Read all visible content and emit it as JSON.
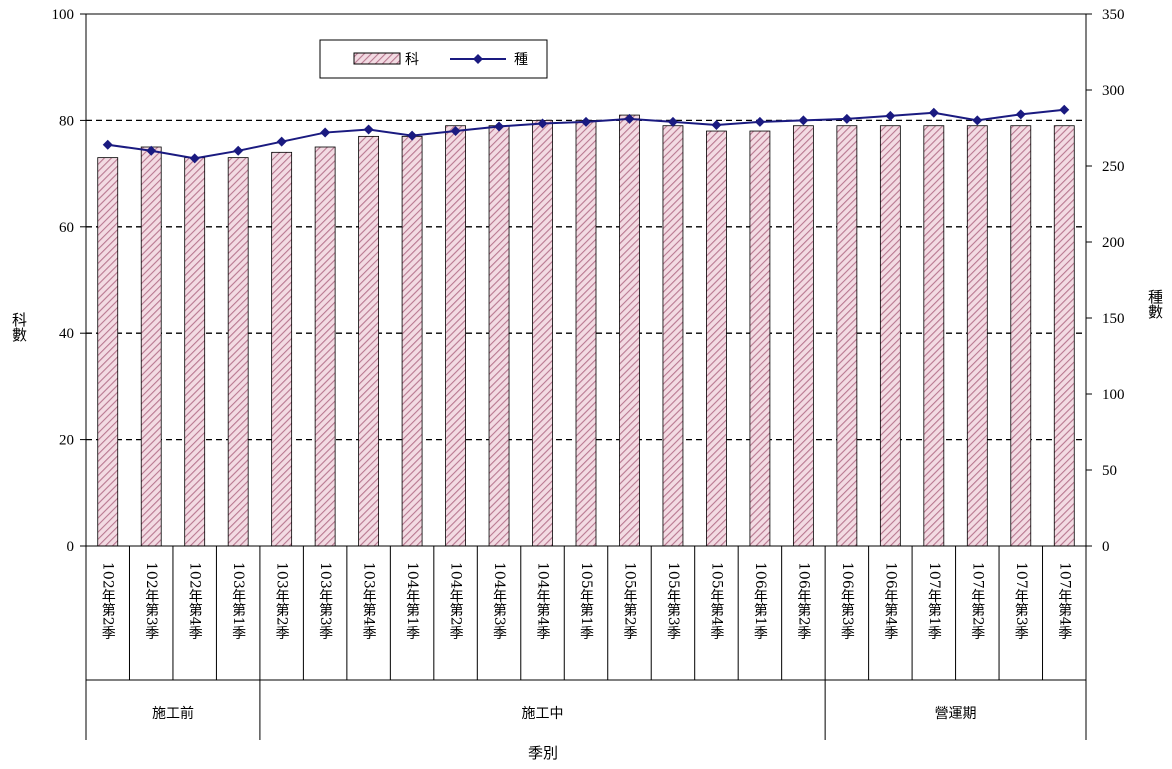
{
  "chart_data": {
    "type": "bar",
    "xlabel": "季別",
    "y_left_label": "科數",
    "y_right_label": "種數",
    "ylim_left": [
      0,
      100
    ],
    "ylim_right": [
      0,
      350
    ],
    "yticks_left": [
      "0",
      "20",
      "40",
      "60",
      "80",
      "100"
    ],
    "yticks_right": [
      "0",
      "50",
      "100",
      "150",
      "200",
      "250",
      "300",
      "350"
    ],
    "grid": "dashed horizontal at 20, 40, 60, 80",
    "legend": {
      "placement": "top-left",
      "entries": [
        "科",
        "種"
      ]
    },
    "categories": [
      "102年第2季",
      "102年第3季",
      "102年第4季",
      "103年第1季",
      "103年第2季",
      "103年第3季",
      "103年第4季",
      "104年第1季",
      "104年第2季",
      "104年第3季",
      "104年第4季",
      "105年第1季",
      "105年第2季",
      "105年第3季",
      "105年第4季",
      "106年第1季",
      "106年第2季",
      "106年第3季",
      "106年第4季",
      "107年第1季",
      "107年第2季",
      "107年第3季",
      "107年第4季"
    ],
    "groups": [
      {
        "label": "施工前",
        "count": 4
      },
      {
        "label": "施工中",
        "count": 13
      },
      {
        "label": "營運期",
        "count": 6
      }
    ],
    "series": [
      {
        "name": "科",
        "type": "bar",
        "axis": "left",
        "values": [
          73,
          75,
          73,
          73,
          74,
          75,
          77,
          77,
          79,
          79,
          80,
          80,
          81,
          79,
          78,
          78,
          79,
          79,
          79,
          79,
          79,
          79,
          79
        ],
        "color": "#b87890",
        "fill": "#f3dbe3"
      },
      {
        "name": "種",
        "type": "line",
        "axis": "right",
        "values": [
          264,
          260,
          255,
          260,
          266,
          272,
          274,
          270,
          273,
          276,
          278,
          279,
          281,
          279,
          277,
          279,
          280,
          281,
          283,
          285,
          280,
          284,
          287
        ],
        "color": "#1a1a80"
      }
    ]
  }
}
